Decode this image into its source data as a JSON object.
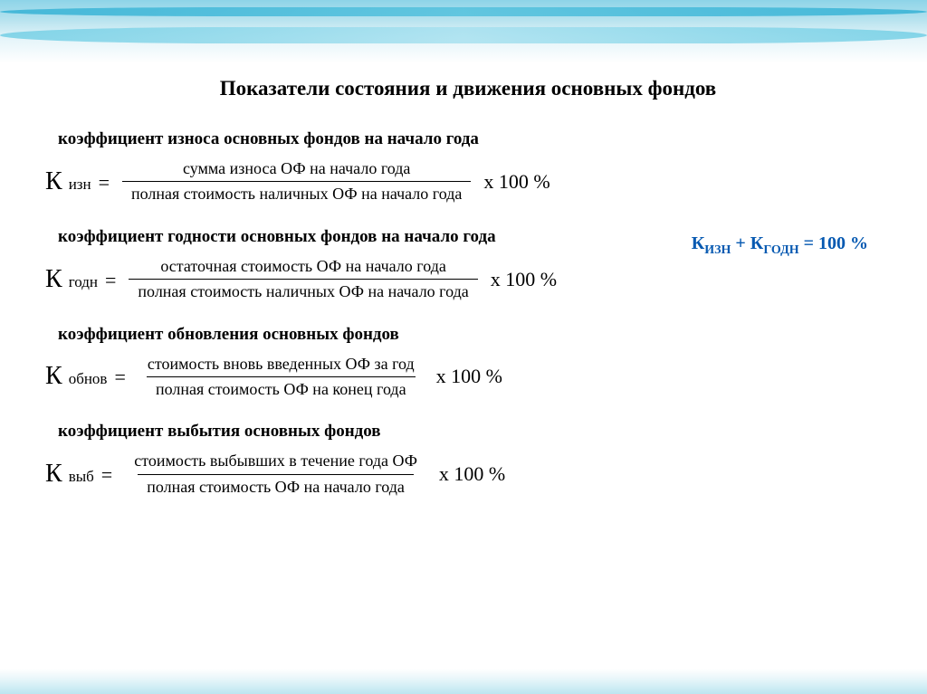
{
  "title": "Показатели состояния и движения основных фондов",
  "identity": {
    "text_html": "К<sub>ИЗН</sub> + К<sub>ГОДН</sub> = 100 %",
    "color": "#0659b1",
    "fontsize": 20,
    "fontweight": "bold"
  },
  "formulas": [
    {
      "label": "коэффициент износа основных фондов на начало года",
      "lhs_sym": "К",
      "lhs_sub": "изн",
      "numerator": "сумма износа ОФ на начало года",
      "denominator": "полная стоимость наличных ОФ на начало года",
      "multiplier": "х 100 %"
    },
    {
      "label": "коэффициент годности основных фондов на начало года",
      "lhs_sym": "К",
      "lhs_sub": "годн",
      "numerator": "остаточная стоимость ОФ на начало года",
      "denominator": "полная стоимость наличных ОФ на начало года",
      "multiplier": "х 100 %"
    },
    {
      "label": "коэффициент обновления основных фондов",
      "lhs_sym": "К",
      "lhs_sub": "обнов",
      "numerator": "стоимость вновь введенных ОФ за год",
      "denominator": "полная стоимость ОФ на конец года",
      "multiplier": "х 100 %"
    },
    {
      "label": "коэффициент выбытия основных фондов",
      "lhs_sym": "К",
      "lhs_sub": "выб",
      "numerator": "стоимость выбывших в течение года  ОФ",
      "denominator": "полная стоимость ОФ на начало года",
      "multiplier": "х 100 %"
    }
  ],
  "style": {
    "background": "#ffffff",
    "wave_colors": [
      "#8dd4e8",
      "#3bb4d6",
      "#6dcde4",
      "#bce6f0"
    ],
    "title_fontsize": 23,
    "label_fontsize": 19,
    "lhs_fontsize": 28,
    "fraction_fontsize": 18,
    "rhs_fontsize": 22,
    "text_color": "#000000"
  }
}
